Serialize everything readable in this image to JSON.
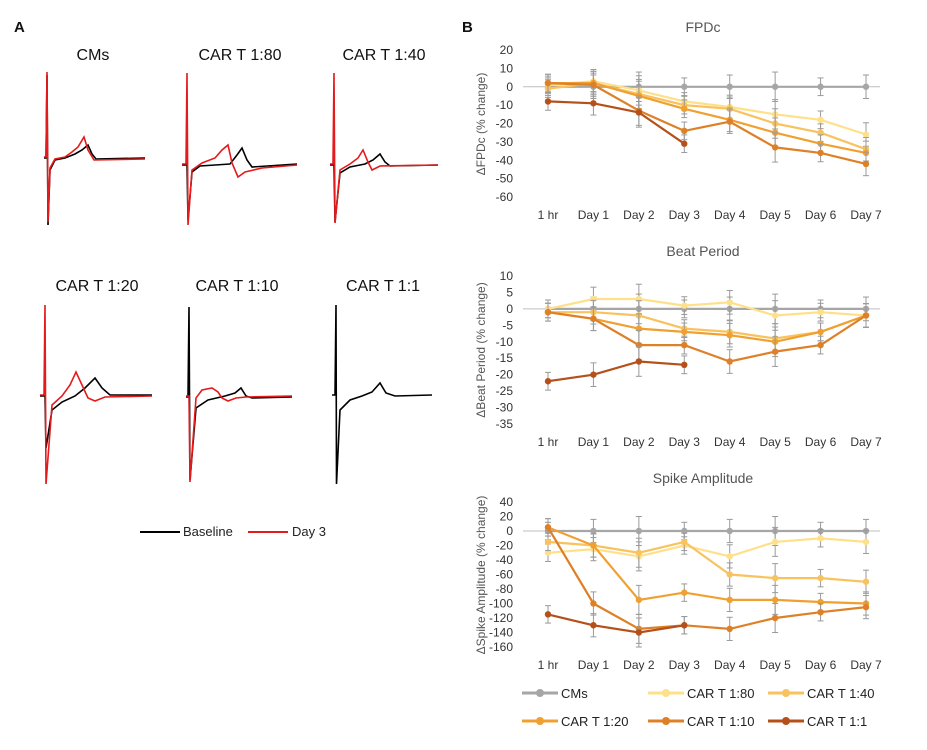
{
  "panels": {
    "a": "A",
    "b": "B"
  },
  "traces": {
    "titles": [
      "CMs",
      "CAR T 1:80",
      "CAR T 1:40",
      "CAR T 1:20",
      "CAR T 1:10",
      "CAR T 1:1"
    ],
    "legend": [
      {
        "label": "Baseline",
        "color": "#000000"
      },
      {
        "label": "Day 3",
        "color": "#e41a1c"
      }
    ]
  },
  "series_meta": [
    {
      "name": "CMs",
      "color": "#a6a6a6"
    },
    {
      "name": "CAR T 1:80",
      "color": "#ffe08a"
    },
    {
      "name": "CAR T 1:40",
      "color": "#f8c25e"
    },
    {
      "name": "CAR T 1:20",
      "color": "#f0a030"
    },
    {
      "name": "CAR T 1:10",
      "color": "#dd8028"
    },
    {
      "name": "CAR T 1:1",
      "color": "#b5501a"
    }
  ],
  "chart_data": [
    {
      "type": "line",
      "title": "FPDc",
      "ylabel": "ΔFPDc (% change)",
      "categories": [
        "1 hr",
        "Day 1",
        "Day 2",
        "Day 3",
        "Day 4",
        "Day 5",
        "Day 6",
        "Day 7"
      ],
      "ylim": [
        -60,
        20
      ],
      "yticks": [
        20,
        10,
        0,
        -10,
        -20,
        -30,
        -40,
        -50,
        -60
      ],
      "series": [
        {
          "name": "CMs",
          "values": [
            0,
            0,
            0,
            0,
            0,
            0,
            0,
            0
          ]
        },
        {
          "name": "CAR T 1:80",
          "values": [
            1,
            3,
            -2,
            -8,
            -11,
            -15,
            -18,
            -26
          ]
        },
        {
          "name": "CAR T 1:40",
          "values": [
            -1,
            2,
            -4,
            -10,
            -12,
            -20,
            -25,
            -34
          ]
        },
        {
          "name": "CAR T 1:20",
          "values": [
            2,
            2,
            -5,
            -12,
            -18,
            -25,
            -31,
            -36
          ]
        },
        {
          "name": "CAR T 1:10",
          "values": [
            2,
            1,
            -13,
            -24,
            -19,
            -33,
            -36,
            -42
          ]
        },
        {
          "name": "CAR T 1:1",
          "values": [
            -8,
            -9,
            -14,
            -31,
            null,
            null,
            null,
            null
          ]
        }
      ]
    },
    {
      "type": "line",
      "title": "Beat Period",
      "ylabel": "ΔBeat Period (% change)",
      "categories": [
        "1 hr",
        "Day 1",
        "Day 2",
        "Day 3",
        "Day 4",
        "Day 5",
        "Day 6",
        "Day 7"
      ],
      "ylim": [
        -35,
        10
      ],
      "yticks": [
        10,
        5,
        0,
        -5,
        -10,
        -15,
        -20,
        -25,
        -30,
        -35
      ],
      "series": [
        {
          "name": "CMs",
          "values": [
            0,
            0,
            0,
            0,
            0,
            0,
            0,
            0
          ]
        },
        {
          "name": "CAR T 1:80",
          "values": [
            0,
            3,
            3,
            1,
            2,
            -2,
            -1,
            -2
          ]
        },
        {
          "name": "CAR T 1:40",
          "values": [
            -1,
            -1,
            -2,
            -6,
            -7,
            -9,
            -7,
            -2
          ]
        },
        {
          "name": "CAR T 1:20",
          "values": [
            -1,
            -3,
            -6,
            -7,
            -8,
            -10,
            -7,
            -2
          ]
        },
        {
          "name": "CAR T 1:10",
          "values": [
            -1,
            -3,
            -11,
            -11,
            -16,
            -13,
            -11,
            -2
          ]
        },
        {
          "name": "CAR T 1:1",
          "values": [
            -22,
            -20,
            -16,
            -17,
            null,
            null,
            null,
            null
          ]
        }
      ]
    },
    {
      "type": "line",
      "title": "Spike Amplitude",
      "ylabel": "ΔSpike Amplitude (% change)",
      "categories": [
        "1 hr",
        "Day 1",
        "Day 2",
        "Day 3",
        "Day 4",
        "Day 5",
        "Day 6",
        "Day 7"
      ],
      "ylim": [
        -160,
        40
      ],
      "yticks": [
        40,
        20,
        0,
        -20,
        -40,
        -60,
        -80,
        -100,
        -120,
        -140,
        -160
      ],
      "series": [
        {
          "name": "CMs",
          "values": [
            0,
            0,
            0,
            0,
            0,
            0,
            0,
            0
          ]
        },
        {
          "name": "CAR T 1:80",
          "values": [
            -30,
            -25,
            -35,
            -20,
            -35,
            -15,
            -10,
            -15
          ]
        },
        {
          "name": "CAR T 1:40",
          "values": [
            -15,
            -20,
            -30,
            -15,
            -60,
            -65,
            -65,
            -70
          ]
        },
        {
          "name": "CAR T 1:20",
          "values": [
            5,
            -20,
            -95,
            -85,
            -95,
            -95,
            -98,
            -100
          ]
        },
        {
          "name": "CAR T 1:10",
          "values": [
            5,
            -100,
            -135,
            -130,
            -135,
            -120,
            -112,
            -105
          ]
        },
        {
          "name": "CAR T 1:1",
          "values": [
            -115,
            -130,
            -140,
            -130,
            null,
            null,
            null,
            null
          ]
        }
      ]
    }
  ]
}
